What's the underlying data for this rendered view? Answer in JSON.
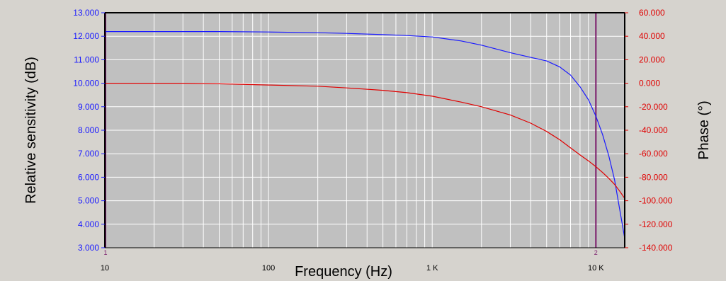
{
  "chart_data": {
    "type": "line",
    "xlabel": "Frequency (Hz)",
    "ylabel_left": "Relative sensitivity (dB)",
    "ylabel_right": "Phase (°)",
    "x_scale": "log",
    "xlim": [
      10,
      15000
    ],
    "ylim_left": [
      3,
      13
    ],
    "ylim_right": [
      -140,
      60
    ],
    "grid": true,
    "x_tick_labels": [
      {
        "value": 10,
        "label": "10"
      },
      {
        "value": 100,
        "label": "100"
      },
      {
        "value": 1000,
        "label": "1 K"
      },
      {
        "value": 10000,
        "label": "10 K"
      }
    ],
    "left_tick_labels": [
      "3.000",
      "4.000",
      "5.000",
      "6.000",
      "7.000",
      "8.000",
      "9.000",
      "10.000",
      "11.000",
      "12.000",
      "13.000"
    ],
    "right_tick_labels": [
      "-140.000",
      "-120.000",
      "-100.000",
      "-80.000",
      "-60.000",
      "-40.000",
      "-20.000",
      "0.000",
      "20.000",
      "40.000",
      "60.000"
    ],
    "cursors": [
      {
        "label": "1",
        "x": 10
      },
      {
        "label": "2",
        "x": 10000
      }
    ],
    "colors": {
      "background": "#d6d3ce",
      "plot_area": "#c0c0c0",
      "left_axis": "#1a1aff",
      "right_axis": "#e00000",
      "sensitivity": "#1a1aff",
      "phase": "#e00000",
      "cursor": "#7a1a6a"
    },
    "series": [
      {
        "axis": "left",
        "x": [
          10,
          30,
          50,
          100,
          200,
          300,
          500,
          700,
          1000,
          1500,
          2000,
          3000,
          4000,
          5000,
          6000,
          7000,
          8000,
          9000,
          10000,
          11000,
          12000,
          13000,
          14000,
          15000
        ],
        "values": [
          12.2,
          12.2,
          12.2,
          12.18,
          12.15,
          12.12,
          12.07,
          12.03,
          11.97,
          11.8,
          11.62,
          11.3,
          11.1,
          10.95,
          10.7,
          10.35,
          9.85,
          9.3,
          8.6,
          7.8,
          6.9,
          5.9,
          4.6,
          3.4
        ]
      },
      {
        "axis": "right",
        "x": [
          10,
          30,
          50,
          100,
          200,
          300,
          500,
          700,
          1000,
          1500,
          2000,
          3000,
          4000,
          5000,
          6000,
          7000,
          8000,
          9000,
          10000,
          11000,
          12000,
          13000,
          14000,
          15000
        ],
        "values": [
          0,
          0,
          -0.5,
          -1.5,
          -2.5,
          -4,
          -6,
          -8,
          -11,
          -16,
          -20,
          -27,
          -34,
          -41,
          -48,
          -55,
          -61,
          -66,
          -71,
          -76,
          -81,
          -86,
          -92,
          -98
        ]
      }
    ]
  }
}
